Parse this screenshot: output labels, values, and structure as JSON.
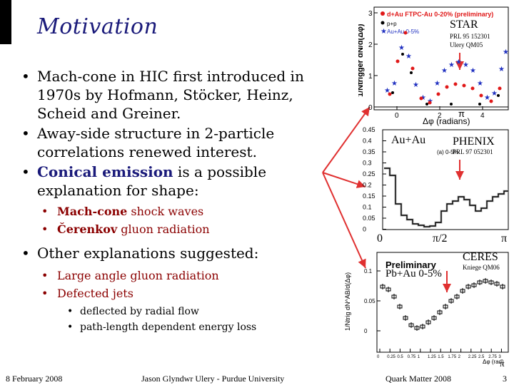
{
  "slide": {
    "title": "Motivation",
    "bullets": [
      {
        "text": "Mach-cone in HIC first introduced in 1970s by Hofmann, Stöcker, Heinz, Scheid and Greiner."
      },
      {
        "text": "Away-side structure in 2-particle correlations renewed interest."
      },
      {
        "pre": "",
        "em": "Conical emission",
        "post": " is a possible explanation for shape:"
      }
    ],
    "sub_bullets_1": [
      {
        "em": "Mach-cone",
        "post": " shock waves"
      },
      {
        "em": "Čerenkov",
        "post": " gluon radiation"
      }
    ],
    "bullet_other": "Other explanations suggested:",
    "sub_bullets_2": [
      "Large angle gluon radiation",
      "Defected jets"
    ],
    "sub_sub_bullets": [
      "deflected by radial flow",
      "path-length dependent energy loss"
    ],
    "footer": {
      "date": "8 February 2008",
      "author": "Jason Glyndwr Ulery - Purdue University",
      "conference": "Quark Matter 2008",
      "page": "3"
    }
  },
  "star_panel": {
    "label": "STAR",
    "ref1": "PRL 95 152301",
    "ref2": "Ulery QM05",
    "legend1": "d+Au FTPC-Au 0-20% (preliminary)",
    "legend2": "p+p",
    "legend3": "Au+Au 0-5%",
    "ylabel": "1/Ntrigger dN/d(Δφ)",
    "xlabel": "Δφ (radians)",
    "pi_label": "π",
    "yticks": [
      "3",
      "2",
      "1",
      "0"
    ],
    "xticks": [
      "0",
      "2",
      "4"
    ]
  },
  "phenix_panel": {
    "label": "PHENIX",
    "system": "Au+Au",
    "ref": "PRL 97 052301",
    "sublabel": "(a) 0-5%",
    "yticks": [
      "0.45",
      "0.4",
      "0.35",
      "0.3",
      "0.25",
      "0.2",
      "0.15",
      "0.1",
      "0.05",
      "0"
    ],
    "xlabels": [
      "0",
      "π/2",
      "π"
    ]
  },
  "ceres_panel": {
    "label": "CERES",
    "ref": "Kniege QM06",
    "system": "Pb+Au 0-5%",
    "prelim": "Preliminary",
    "ylabel": "1/Ntrig dN^AB/d(Δφ)",
    "xlabel": "Δφ (rad)",
    "yticks": [
      "0.1",
      "0.05",
      "0"
    ],
    "xticks": [
      "0",
      "0.25",
      "0.5",
      "0.75",
      "1",
      "1.25",
      "1.5",
      "1.75",
      "2",
      "2.25",
      "2.5",
      "2.75",
      "3"
    ],
    "pi_label": "π"
  },
  "colors": {
    "title": "#1a1a7a",
    "sub_bullet": "#8b0000",
    "arrow": "#e03030",
    "star_red": "#e01818",
    "star_blue": "#2030c0"
  }
}
